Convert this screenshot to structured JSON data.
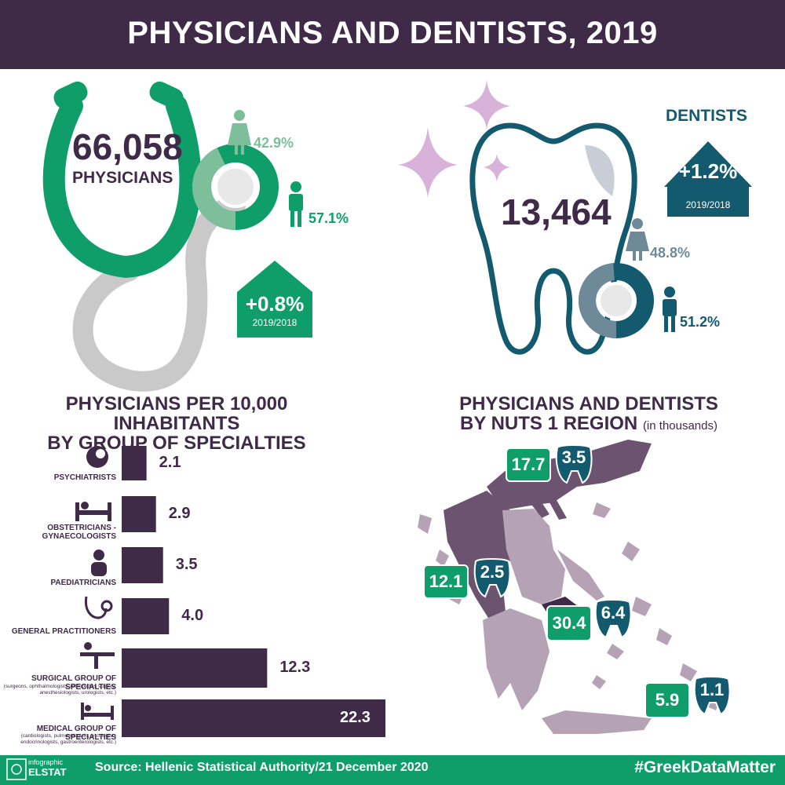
{
  "title": "PHYSICIANS AND DENTISTS, 2019",
  "physicians": {
    "total": "66,058",
    "label": "PHYSICIANS",
    "female_pct": "42.9%",
    "male_pct": "57.1%",
    "female_share": 42.9,
    "male_share": 57.1,
    "change": "+0.8%",
    "change_period": "2019/2018"
  },
  "dentists": {
    "title": "DENTISTS",
    "total": "13,464",
    "female_pct": "48.8%",
    "male_pct": "51.2%",
    "female_share": 48.8,
    "male_share": 51.2,
    "change": "+1.2%",
    "change_period": "2019/2018"
  },
  "specialties_section": {
    "title_line1": "PHYSICIANS PER 10,000 INHABITANTS",
    "title_line2": "BY GROUP OF SPECIALTIES"
  },
  "regions_section": {
    "title_line1": "PHYSICIANS AND DENTISTS",
    "title_line2": "BY NUTS 1 REGION",
    "unit": "(in thousands)"
  },
  "chart_data": {
    "type": "bar",
    "orientation": "horizontal",
    "categories": [
      {
        "label": "PSYCHIATRISTS",
        "sub": "",
        "icon": "brain-head-icon"
      },
      {
        "label": "OBSTETRICIANS - GYNAECOLOGISTS",
        "sub": "",
        "icon": "hospital-bed-icon"
      },
      {
        "label": "PAEDIATRICIANS",
        "sub": "",
        "icon": "baby-icon"
      },
      {
        "label": "GENERAL PRACTITIONERS",
        "sub": "",
        "icon": "stethoscope-icon"
      },
      {
        "label": "SURGICAL GROUP OF SPECIALTIES",
        "sub": "(surgeons, ophthalmologists, orthopedics surgery, anesthesiologists, urologists, etc.)",
        "icon": "surgery-icon"
      },
      {
        "label": "MEDICAL GROUP OF SPECIALTIES",
        "sub": "(cardiologists, pulmonologists, oncologists endocrinologists, gastroenterologists, etc.)",
        "icon": "patient-bed-icon"
      }
    ],
    "values": [
      2.1,
      2.9,
      3.5,
      4.0,
      12.3,
      22.3
    ],
    "value_labels": [
      "2.1",
      "2.9",
      "3.5",
      "4.0",
      "12.3",
      "22.3"
    ],
    "bar_color": "#3f2a48"
  },
  "regions": [
    {
      "physicians": "17.7",
      "dentists": "3.5"
    },
    {
      "physicians": "12.1",
      "dentists": "2.5"
    },
    {
      "physicians": "30.4",
      "dentists": "6.4"
    },
    {
      "physicians": "5.9",
      "dentists": "1.1"
    }
  ],
  "footer": {
    "logo_small": "infographic",
    "logo_big": "ELSTAT",
    "source": "Source: Hellenic Statistical Authority/21 December 2020",
    "hashtag": "#GreekDataMatter"
  },
  "colors": {
    "purple": "#3f2a48",
    "green": "#0f9e6a",
    "light_green": "#7cbf9a",
    "teal": "#135a6e",
    "grey_teal": "#6e8a98",
    "lilac": "#d8b2d8",
    "map_dark": "#6c5470",
    "map_light": "#b5a3b5"
  }
}
